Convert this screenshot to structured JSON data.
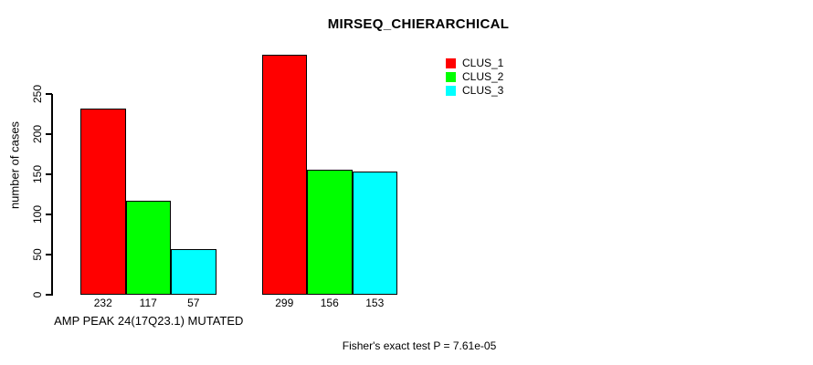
{
  "chart_data": {
    "type": "bar",
    "title": "MIRSEQ_CHIERARCHICAL",
    "xlabel": "",
    "ylabel": "number of cases",
    "ylim": [
      0,
      250
    ],
    "yticks": [
      0,
      50,
      100,
      150,
      200,
      250
    ],
    "grid": false,
    "legend": {
      "position": "top-right",
      "entries": [
        {
          "label": "CLUS_1",
          "color": "#ff0000"
        },
        {
          "label": "CLUS_2",
          "color": "#00ff00"
        },
        {
          "label": "CLUS_3",
          "color": "#00ffff"
        }
      ]
    },
    "categories": [
      "AMP PEAK 24(17Q23.1) MUTATED",
      ""
    ],
    "series": [
      {
        "name": "CLUS_1",
        "color": "#ff0000",
        "values": [
          232,
          299
        ]
      },
      {
        "name": "CLUS_2",
        "color": "#00ff00",
        "values": [
          117,
          156
        ]
      },
      {
        "name": "CLUS_3",
        "color": "#00ffff",
        "values": [
          57,
          153
        ]
      }
    ],
    "bar_value_labels": [
      [
        232,
        117,
        57
      ],
      [
        299,
        156,
        153
      ]
    ],
    "annotation": "Fisher's exact test P = 7.61e-05",
    "axis_color": "#000000",
    "bar_border_color": "#000000",
    "background_color": "#ffffff"
  }
}
